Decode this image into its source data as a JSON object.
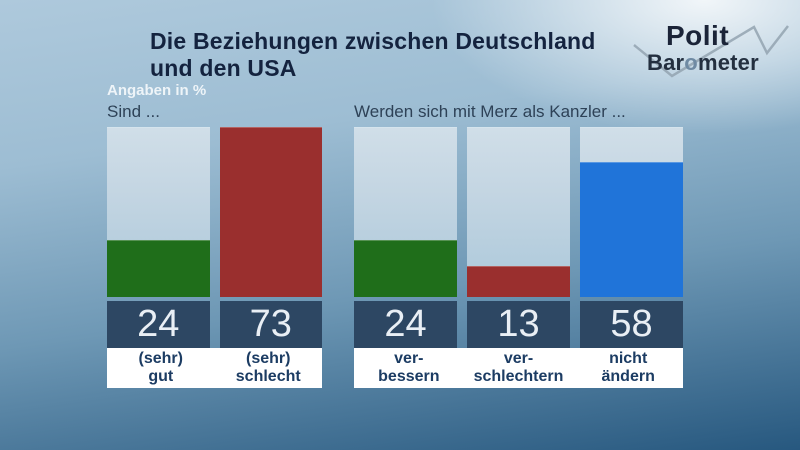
{
  "header": {
    "title_line1": "Die Beziehungen zwischen Deutschland",
    "title_line2": "und den USA",
    "note": "Angaben in %"
  },
  "logo": {
    "top": "Polit",
    "bottom_pre": "Bar",
    "bottom_o": "o",
    "bottom_post": "meter"
  },
  "colors": {
    "green": "#1f6e1a",
    "red": "#9a2f2e",
    "blue": "#2074d9",
    "value_box": "#2d4763",
    "label_text": "#1c3c63",
    "title_text": "#14233f",
    "background_bottom": "#27587f"
  },
  "charts": [
    {
      "question": "Sind ...",
      "scale_max": 73,
      "bars": [
        {
          "value": 24,
          "color": "green",
          "label_line1": "(sehr)",
          "label_line2": "gut"
        },
        {
          "value": 73,
          "color": "red",
          "label_line1": "(sehr)",
          "label_line2": "schlecht"
        }
      ]
    },
    {
      "question": "Werden sich mit Merz als Kanzler ...",
      "scale_max": 73,
      "bars": [
        {
          "value": 24,
          "color": "green",
          "label_line1": "ver-",
          "label_line2": "bessern"
        },
        {
          "value": 13,
          "color": "red",
          "label_line1": "ver-",
          "label_line2": "schlechtern"
        },
        {
          "value": 58,
          "color": "blue",
          "label_line1": "nicht",
          "label_line2": "ändern"
        }
      ]
    }
  ],
  "chart_data": [
    {
      "type": "bar",
      "title": "Sind ...",
      "suptitle": "Die Beziehungen zwischen Deutschland und den USA",
      "unit": "Angaben in %",
      "categories": [
        "(sehr) gut",
        "(sehr) schlecht"
      ],
      "values": [
        24,
        73
      ],
      "colors": [
        "#1f6e1a",
        "#9a2f2e"
      ],
      "ylim": [
        0,
        73
      ],
      "grid": false,
      "legend": false
    },
    {
      "type": "bar",
      "title": "Werden sich mit Merz als Kanzler ...",
      "suptitle": "Die Beziehungen zwischen Deutschland und den USA",
      "unit": "Angaben in %",
      "categories": [
        "verbessern",
        "verschlechtern",
        "nicht ändern"
      ],
      "values": [
        24,
        13,
        58
      ],
      "colors": [
        "#1f6e1a",
        "#9a2f2e",
        "#2074d9"
      ],
      "ylim": [
        0,
        73
      ],
      "grid": false,
      "legend": false
    }
  ]
}
